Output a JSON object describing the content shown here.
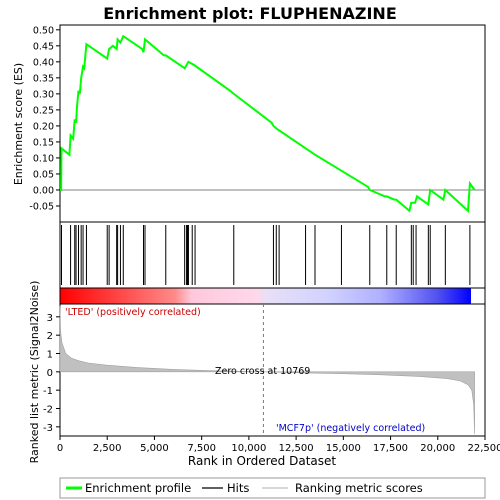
{
  "chart_data": [
    {
      "type": "line",
      "panel": "enrichment",
      "title": "Enrichment plot: FLUPHENAZINE",
      "ylabel": "Enrichment score (ES)",
      "xlim": [
        0,
        22500
      ],
      "ylim": [
        -0.1,
        0.5
      ],
      "yticks": [
        -0.05,
        0.0,
        0.05,
        0.1,
        0.15,
        0.2,
        0.25,
        0.3,
        0.35,
        0.4,
        0.45,
        0.5
      ],
      "ytick_labels": [
        "-0.05",
        "0.00",
        "0.05",
        "0.10",
        "0.15",
        "0.20",
        "0.25",
        "0.30",
        "0.35",
        "0.40",
        "0.45",
        "0.50"
      ],
      "color": "#00ff00",
      "series": [
        {
          "name": "Enrichment profile",
          "x": [
            0,
            60,
            80,
            500,
            560,
            700,
            780,
            850,
            900,
            980,
            1050,
            1120,
            1220,
            1280,
            1400,
            2500,
            2600,
            2800,
            3000,
            3050,
            3200,
            3350,
            4350,
            4420,
            4500,
            5500,
            5600,
            6600,
            6700,
            6800,
            7100,
            9000,
            9200,
            11200,
            11300,
            11500,
            13000,
            13500,
            14900,
            16300,
            16400,
            17200,
            17300,
            17700,
            17800,
            18500,
            18600,
            18800,
            18900,
            19500,
            19600,
            20300,
            20400,
            21600,
            21700,
            21950
          ],
          "values": [
            0.0,
            0.0,
            0.13,
            0.11,
            0.17,
            0.16,
            0.22,
            0.21,
            0.26,
            0.31,
            0.3,
            0.35,
            0.385,
            0.38,
            0.455,
            0.41,
            0.44,
            0.45,
            0.44,
            0.47,
            0.46,
            0.48,
            0.44,
            0.43,
            0.47,
            0.42,
            0.42,
            0.38,
            0.39,
            0.4,
            0.39,
            0.31,
            0.3,
            0.21,
            0.2,
            0.19,
            0.13,
            0.11,
            0.06,
            0.01,
            0.0,
            -0.02,
            -0.02,
            -0.03,
            -0.03,
            -0.065,
            -0.04,
            -0.04,
            -0.02,
            -0.045,
            0.0,
            -0.03,
            0.0,
            -0.065,
            0.02,
            0.0
          ]
        }
      ],
      "legend_position": "bottom"
    },
    {
      "type": "scatter",
      "panel": "hits",
      "series": [
        {
          "name": "Hits",
          "x": [
            80,
            560,
            780,
            850,
            980,
            1120,
            1220,
            1400,
            2500,
            2600,
            3000,
            3050,
            3200,
            3350,
            4420,
            4500,
            5600,
            6600,
            6700,
            6750,
            6800,
            7000,
            7150,
            9200,
            11300,
            11450,
            11600,
            13000,
            13500,
            14900,
            16400,
            17300,
            17800,
            18600,
            18700,
            18850,
            19500,
            19600,
            20400,
            21700
          ]
        }
      ]
    },
    {
      "type": "heatmap",
      "panel": "ranking-colorbar",
      "colors": [
        "#ff0000",
        "#ffc8dc",
        "#d2d2ff",
        "#0000ff"
      ]
    },
    {
      "type": "area",
      "panel": "ranked-metric",
      "xlabel": "Rank in Ordered Dataset",
      "ylabel": "Ranked list metric (Signal2Noise)",
      "xlim": [
        0,
        22500
      ],
      "ylim": [
        -3.5,
        3.5
      ],
      "xticks": [
        0,
        2500,
        5000,
        7500,
        10000,
        12500,
        15000,
        17500,
        20000,
        22500
      ],
      "xtick_labels": [
        "0",
        "2,500",
        "5,000",
        "7,500",
        "10,000",
        "12,500",
        "15,000",
        "17,500",
        "20,000",
        "22,500"
      ],
      "yticks": [
        -3,
        -2,
        -1,
        0,
        1,
        2,
        3
      ],
      "ytick_labels": [
        "-3",
        "-2",
        "-1",
        "0",
        "1",
        "2",
        "3"
      ],
      "series": [
        {
          "name": "Ranking metric scores",
          "x": [
            0,
            30,
            100,
            300,
            600,
            1000,
            1500,
            2500,
            4000,
            6000,
            8000,
            10769,
            13000,
            15000,
            17000,
            19000,
            20500,
            21200,
            21600,
            21800,
            21900,
            21950
          ],
          "values": [
            3.6,
            2.2,
            1.6,
            1.0,
            0.75,
            0.6,
            0.48,
            0.36,
            0.24,
            0.13,
            0.06,
            0.0,
            -0.06,
            -0.1,
            -0.16,
            -0.25,
            -0.37,
            -0.5,
            -0.7,
            -1.0,
            -1.8,
            -3.4
          ]
        }
      ],
      "zero_cross_label": "Zero cross at 10769",
      "zero_cross": 10769,
      "pos_label": "'LTED' (positively correlated)",
      "neg_label": "'MCF7p' (negatively correlated)"
    }
  ],
  "legend": [
    {
      "label": "Enrichment profile",
      "color": "#00ff00"
    },
    {
      "label": "Hits",
      "color": "#000000"
    },
    {
      "label": "Ranking metric scores",
      "color": "#c0c0c0"
    }
  ]
}
